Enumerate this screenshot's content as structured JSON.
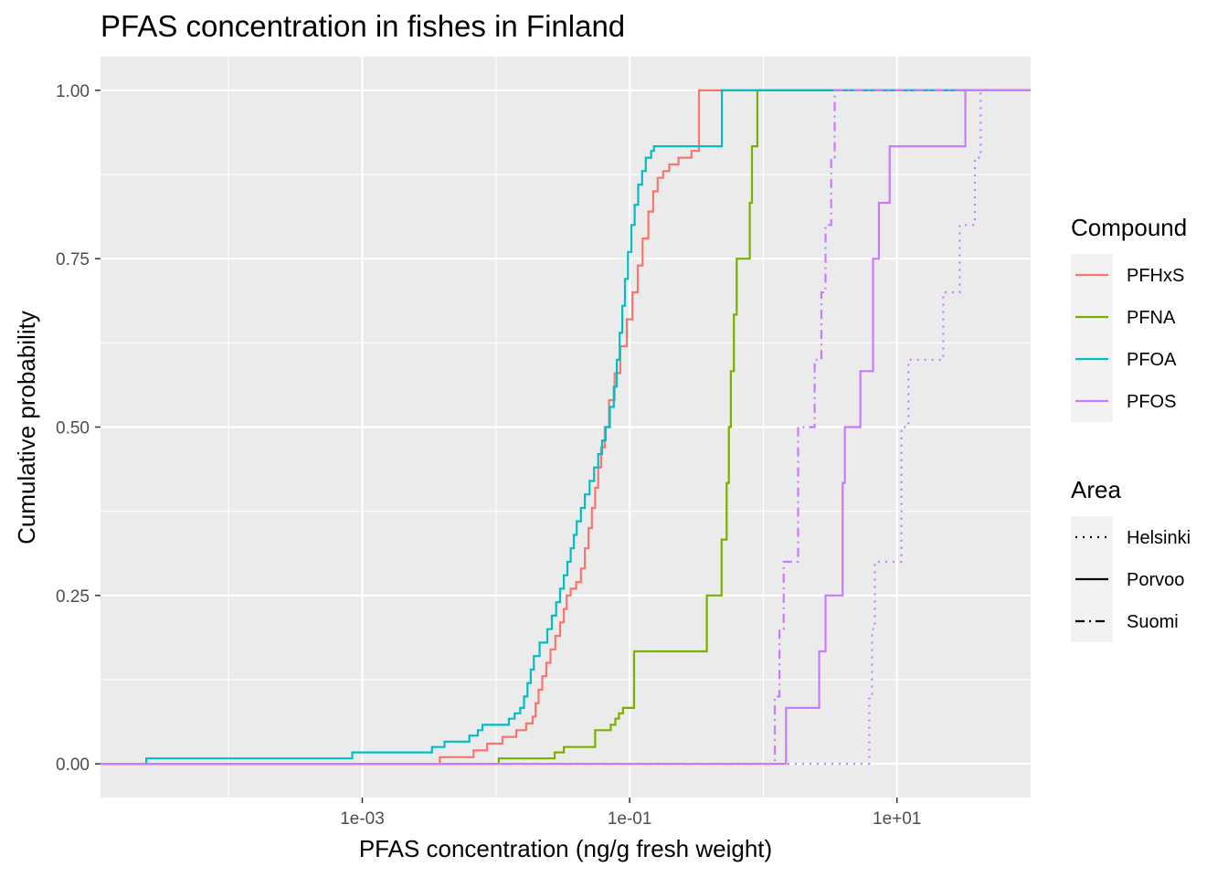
{
  "chart_data": {
    "type": "line",
    "subtype": "ecdf-step",
    "title": "PFAS concentration in fishes in Finland",
    "xlabel": "PFAS concentration (ng/g fresh weight)",
    "ylabel": "Cumulative probability",
    "x_scale": "log10",
    "xlim": [
      1.1e-05,
      100
    ],
    "ylim": [
      -0.05,
      1.05
    ],
    "x_ticks": [
      {
        "value": 0.001,
        "label": "1e-03"
      },
      {
        "value": 0.1,
        "label": "1e-01"
      },
      {
        "value": 10,
        "label": "1e+01"
      }
    ],
    "y_ticks": [
      {
        "value": 0,
        "label": "0.00"
      },
      {
        "value": 0.25,
        "label": "0.25"
      },
      {
        "value": 0.5,
        "label": "0.50"
      },
      {
        "value": 0.75,
        "label": "0.75"
      },
      {
        "value": 1,
        "label": "1.00"
      }
    ],
    "grid": true,
    "background": "#ebebeb",
    "legend": {
      "placement": "right",
      "color_title": "Compound",
      "color_entries": [
        {
          "name": "PFHxS",
          "color": "#F8766D"
        },
        {
          "name": "PFNA",
          "color": "#7CAE00"
        },
        {
          "name": "PFOA",
          "color": "#00BFC4"
        },
        {
          "name": "PFOS",
          "color": "#C77CFF"
        }
      ],
      "linetype_title": "Area",
      "linetype_entries": [
        {
          "name": "Helsinki",
          "linetype": "dotted"
        },
        {
          "name": "Porvoo",
          "linetype": "solid"
        },
        {
          "name": "Suomi",
          "linetype": "dashdot"
        }
      ]
    },
    "series": [
      {
        "compound": "PFHxS",
        "area": "Porvoo",
        "color": "#F8766D",
        "linetype": "solid",
        "points": [
          [
            0.0038,
            0.01
          ],
          [
            0.0068,
            0.02
          ],
          [
            0.0086,
            0.03
          ],
          [
            0.0112,
            0.04
          ],
          [
            0.0142,
            0.05
          ],
          [
            0.0168,
            0.06
          ],
          [
            0.0188,
            0.07
          ],
          [
            0.0198,
            0.09
          ],
          [
            0.0208,
            0.11
          ],
          [
            0.0222,
            0.13
          ],
          [
            0.0238,
            0.15
          ],
          [
            0.0256,
            0.17
          ],
          [
            0.0278,
            0.19
          ],
          [
            0.0302,
            0.21
          ],
          [
            0.0322,
            0.23
          ],
          [
            0.0338,
            0.25
          ],
          [
            0.0362,
            0.26
          ],
          [
            0.0398,
            0.27
          ],
          [
            0.0432,
            0.29
          ],
          [
            0.0462,
            0.32
          ],
          [
            0.0492,
            0.35
          ],
          [
            0.0522,
            0.38
          ],
          [
            0.0552,
            0.41
          ],
          [
            0.0582,
            0.44
          ],
          [
            0.0612,
            0.47
          ],
          [
            0.0652,
            0.5
          ],
          [
            0.0702,
            0.54
          ],
          [
            0.0772,
            0.58
          ],
          [
            0.0852,
            0.62
          ],
          [
            0.0952,
            0.66
          ],
          [
            0.105,
            0.7
          ],
          [
            0.115,
            0.74
          ],
          [
            0.125,
            0.78
          ],
          [
            0.138,
            0.82
          ],
          [
            0.15,
            0.85
          ],
          [
            0.162,
            0.87
          ],
          [
            0.178,
            0.88
          ],
          [
            0.198,
            0.89
          ],
          [
            0.232,
            0.9
          ],
          [
            0.29,
            0.91
          ],
          [
            0.33,
            1.0
          ]
        ]
      },
      {
        "compound": "PFNA",
        "area": "Porvoo",
        "color": "#7CAE00",
        "linetype": "solid",
        "points": [
          [
            0.0105,
            0.008
          ],
          [
            0.0275,
            0.017
          ],
          [
            0.0322,
            0.025
          ],
          [
            0.0552,
            0.05
          ],
          [
            0.0722,
            0.058
          ],
          [
            0.0782,
            0.067
          ],
          [
            0.0832,
            0.075
          ],
          [
            0.0892,
            0.083
          ],
          [
            0.108,
            0.167
          ],
          [
            0.378,
            0.25
          ],
          [
            0.488,
            0.333
          ],
          [
            0.532,
            0.417
          ],
          [
            0.552,
            0.5
          ],
          [
            0.572,
            0.583
          ],
          [
            0.602,
            0.667
          ],
          [
            0.632,
            0.75
          ],
          [
            0.792,
            0.833
          ],
          [
            0.822,
            0.917
          ],
          [
            0.902,
            1.0
          ]
        ]
      },
      {
        "compound": "PFOA",
        "area": "Porvoo",
        "color": "#00BFC4",
        "linetype": "solid",
        "points": [
          [
            2.42e-05,
            0.008
          ],
          [
            0.00084,
            0.017
          ],
          [
            0.00332,
            0.025
          ],
          [
            0.00412,
            0.033
          ],
          [
            0.00632,
            0.042
          ],
          [
            0.00732,
            0.05
          ],
          [
            0.00792,
            0.058
          ],
          [
            0.0125,
            0.067
          ],
          [
            0.0138,
            0.075
          ],
          [
            0.0152,
            0.083
          ],
          [
            0.0162,
            0.1
          ],
          [
            0.0172,
            0.12
          ],
          [
            0.0182,
            0.14
          ],
          [
            0.0192,
            0.16
          ],
          [
            0.0212,
            0.18
          ],
          [
            0.0242,
            0.2
          ],
          [
            0.0262,
            0.22
          ],
          [
            0.0282,
            0.24
          ],
          [
            0.0302,
            0.26
          ],
          [
            0.0322,
            0.28
          ],
          [
            0.0342,
            0.3
          ],
          [
            0.0362,
            0.32
          ],
          [
            0.0382,
            0.34
          ],
          [
            0.0402,
            0.36
          ],
          [
            0.0432,
            0.38
          ],
          [
            0.0462,
            0.4
          ],
          [
            0.0502,
            0.42
          ],
          [
            0.0542,
            0.44
          ],
          [
            0.0582,
            0.46
          ],
          [
            0.0622,
            0.48
          ],
          [
            0.0662,
            0.5
          ],
          [
            0.0712,
            0.53
          ],
          [
            0.0762,
            0.56
          ],
          [
            0.0802,
            0.6
          ],
          [
            0.0842,
            0.64
          ],
          [
            0.0882,
            0.68
          ],
          [
            0.0922,
            0.72
          ],
          [
            0.0972,
            0.76
          ],
          [
            0.103,
            0.8
          ],
          [
            0.109,
            0.83
          ],
          [
            0.116,
            0.86
          ],
          [
            0.124,
            0.88
          ],
          [
            0.132,
            0.9
          ],
          [
            0.145,
            0.91
          ],
          [
            0.152,
            0.917
          ],
          [
            0.49,
            1.0
          ]
        ]
      },
      {
        "compound": "PFOS",
        "area": "Porvoo",
        "color": "#C77CFF",
        "linetype": "solid",
        "points": [
          [
            1.48,
            0.083
          ],
          [
            2.62,
            0.167
          ],
          [
            2.92,
            0.25
          ],
          [
            3.92,
            0.417
          ],
          [
            4.08,
            0.5
          ],
          [
            5.32,
            0.583
          ],
          [
            6.62,
            0.75
          ],
          [
            7.32,
            0.833
          ],
          [
            8.82,
            0.917
          ],
          [
            32.5,
            1.0
          ]
        ]
      },
      {
        "compound": "PFOS",
        "area": "Helsinki",
        "color": "#C77CFF",
        "linetype": "dotted",
        "points": [
          [
            6.22,
            0.1
          ],
          [
            6.52,
            0.2
          ],
          [
            6.82,
            0.3
          ],
          [
            10.8,
            0.5
          ],
          [
            12.2,
            0.6
          ],
          [
            22.2,
            0.7
          ],
          [
            29.5,
            0.8
          ],
          [
            38.2,
            0.9
          ],
          [
            42.2,
            1.0
          ]
        ]
      },
      {
        "compound": "PFOS",
        "area": "Suomi",
        "color": "#C77CFF",
        "linetype": "dashdot",
        "points": [
          [
            1.22,
            0.1
          ],
          [
            1.32,
            0.2
          ],
          [
            1.42,
            0.3
          ],
          [
            1.82,
            0.5
          ],
          [
            2.42,
            0.6
          ],
          [
            2.72,
            0.7
          ],
          [
            2.92,
            0.8
          ],
          [
            3.22,
            0.9
          ],
          [
            3.42,
            1.0
          ]
        ]
      }
    ]
  }
}
